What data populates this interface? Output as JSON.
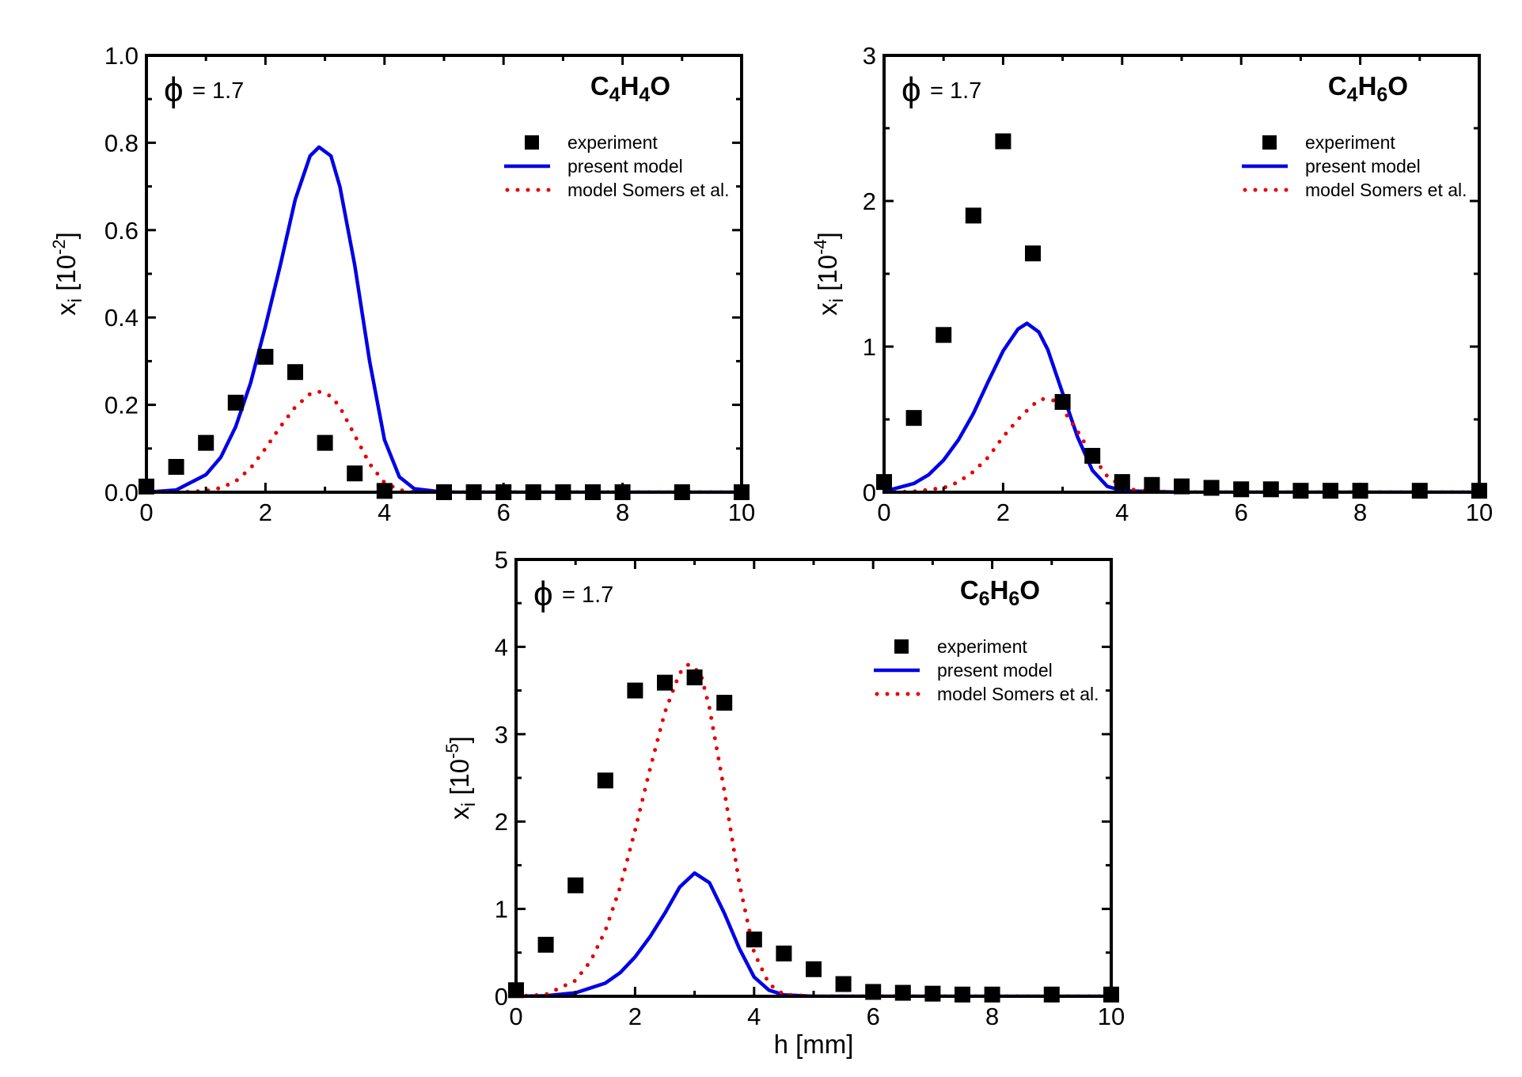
{
  "legend": {
    "experiment": "experiment",
    "present": "present model",
    "somers": "model Somers et al."
  },
  "colors": {
    "experiment": "#000000",
    "present": "#0000e6",
    "somers": "#e60000",
    "axes": "#000000"
  },
  "chart_data": [
    {
      "type": "scatter",
      "panel": "top-left",
      "annotation_phi": "ϕ",
      "annotation_value": "= 1.7",
      "species": "C4H4O",
      "xlabel": "",
      "ylabel": "xi [10-2]",
      "xlim": [
        0,
        10
      ],
      "ylim": [
        0,
        1.0
      ],
      "xticks": [
        0,
        2,
        4,
        6,
        8,
        10
      ],
      "xtick_labels": [
        "0",
        "2",
        "4",
        "6",
        "8",
        "10"
      ],
      "yticks": [
        0,
        0.2,
        0.4,
        0.6,
        0.8,
        1.0
      ],
      "ytick_labels": [
        "0.0",
        "0.2",
        "0.4",
        "0.6",
        "0.8",
        "1.0"
      ],
      "legend_position": "top-right",
      "series": [
        {
          "name": "experiment",
          "style": "squares",
          "x": [
            0,
            0.5,
            1,
            1.5,
            2,
            2.5,
            3,
            3.5,
            4,
            5,
            5.5,
            6,
            6.5,
            7,
            7.5,
            8,
            9,
            10
          ],
          "y": [
            0.013,
            0.058,
            0.113,
            0.205,
            0.31,
            0.275,
            0.113,
            0.043,
            0.003,
            0,
            0,
            0,
            0,
            0,
            0,
            0,
            0,
            0
          ]
        },
        {
          "name": "present model",
          "style": "solid-line",
          "x": [
            0,
            0.5,
            1,
            1.25,
            1.5,
            1.75,
            2,
            2.25,
            2.5,
            2.75,
            2.9,
            3.1,
            3.25,
            3.5,
            3.75,
            4,
            4.25,
            4.5,
            5,
            6,
            8,
            10
          ],
          "y": [
            0,
            0.005,
            0.04,
            0.08,
            0.15,
            0.25,
            0.38,
            0.52,
            0.67,
            0.77,
            0.79,
            0.77,
            0.7,
            0.52,
            0.3,
            0.12,
            0.035,
            0.008,
            0,
            0,
            0,
            0
          ]
        },
        {
          "name": "model Somers et al.",
          "style": "dotted-line",
          "x": [
            0,
            0.5,
            1,
            1.25,
            1.5,
            1.75,
            2,
            2.25,
            2.5,
            2.75,
            2.9,
            3.1,
            3.25,
            3.5,
            3.75,
            4,
            4.25,
            4.5,
            5,
            6,
            8,
            10
          ],
          "y": [
            0,
            0,
            0.003,
            0.01,
            0.025,
            0.055,
            0.1,
            0.15,
            0.195,
            0.225,
            0.23,
            0.22,
            0.195,
            0.13,
            0.065,
            0.022,
            0.005,
            0,
            0,
            0,
            0,
            0
          ]
        }
      ]
    },
    {
      "type": "scatter",
      "panel": "top-right",
      "annotation_phi": "ϕ",
      "annotation_value": "= 1.7",
      "species": "C4H6O",
      "xlabel": "",
      "ylabel": "xi [10-4]",
      "xlim": [
        0,
        10
      ],
      "ylim": [
        0,
        3
      ],
      "xticks": [
        0,
        2,
        4,
        6,
        8,
        10
      ],
      "xtick_labels": [
        "0",
        "2",
        "4",
        "6",
        "8",
        "10"
      ],
      "yticks": [
        0,
        1,
        2,
        3
      ],
      "ytick_labels": [
        "0",
        "1",
        "2",
        "3"
      ],
      "legend_position": "top-right",
      "series": [
        {
          "name": "experiment",
          "style": "squares",
          "x": [
            0,
            0.5,
            1,
            1.5,
            2,
            2.5,
            3,
            3.5,
            4,
            4.5,
            5,
            5.5,
            6,
            6.5,
            7,
            7.5,
            8,
            9,
            10
          ],
          "y": [
            0.07,
            0.51,
            1.08,
            1.9,
            2.41,
            1.64,
            0.62,
            0.25,
            0.07,
            0.05,
            0.04,
            0.03,
            0.02,
            0.02,
            0.01,
            0.01,
            0.01,
            0.01,
            0.01
          ]
        },
        {
          "name": "present model",
          "style": "solid-line",
          "x": [
            0,
            0.5,
            0.75,
            1,
            1.25,
            1.5,
            1.75,
            2,
            2.25,
            2.4,
            2.6,
            2.75,
            3,
            3.25,
            3.5,
            3.75,
            4,
            5,
            6,
            8,
            10
          ],
          "y": [
            0.005,
            0.06,
            0.12,
            0.22,
            0.36,
            0.54,
            0.76,
            0.97,
            1.12,
            1.16,
            1.1,
            0.98,
            0.68,
            0.38,
            0.15,
            0.04,
            0.01,
            0,
            0,
            0,
            0
          ]
        },
        {
          "name": "model Somers et al.",
          "style": "dotted-line",
          "x": [
            0,
            0.5,
            1,
            1.25,
            1.5,
            1.75,
            2,
            2.25,
            2.5,
            2.65,
            2.85,
            3,
            3.25,
            3.5,
            3.75,
            4,
            4.25,
            5,
            6,
            8,
            10
          ],
          "y": [
            0,
            0.005,
            0.03,
            0.07,
            0.14,
            0.24,
            0.38,
            0.5,
            0.6,
            0.64,
            0.63,
            0.57,
            0.42,
            0.25,
            0.11,
            0.04,
            0.01,
            0,
            0,
            0,
            0
          ]
        }
      ]
    },
    {
      "type": "scatter",
      "panel": "bottom-center",
      "annotation_phi": "ϕ",
      "annotation_value": "= 1.7",
      "species": "C6H6O",
      "xlabel": "h [mm]",
      "ylabel": "xi [10-5]",
      "xlim": [
        0,
        10
      ],
      "ylim": [
        0,
        5
      ],
      "xticks": [
        0,
        2,
        4,
        6,
        8,
        10
      ],
      "xtick_labels": [
        "0",
        "2",
        "4",
        "6",
        "8",
        "10"
      ],
      "yticks": [
        0,
        1,
        2,
        3,
        4,
        5
      ],
      "ytick_labels": [
        "0",
        "1",
        "2",
        "3",
        "4",
        "5"
      ],
      "legend_position": "top-right",
      "series": [
        {
          "name": "experiment",
          "style": "squares",
          "x": [
            0,
            0.5,
            1,
            1.5,
            2,
            2.5,
            3,
            3.5,
            4,
            4.5,
            5,
            5.5,
            6,
            6.5,
            7,
            7.5,
            8,
            9,
            10
          ],
          "y": [
            0.07,
            0.59,
            1.27,
            2.47,
            3.5,
            3.59,
            3.65,
            3.36,
            0.65,
            0.49,
            0.31,
            0.14,
            0.05,
            0.04,
            0.03,
            0.02,
            0.02,
            0.02,
            0.02
          ]
        },
        {
          "name": "present model",
          "style": "solid-line",
          "x": [
            0,
            0.5,
            1,
            1.5,
            1.75,
            2,
            2.25,
            2.5,
            2.75,
            3,
            3.25,
            3.5,
            3.75,
            4,
            4.25,
            4.5,
            5,
            6,
            8,
            10
          ],
          "y": [
            0,
            0.005,
            0.04,
            0.15,
            0.27,
            0.45,
            0.68,
            0.95,
            1.25,
            1.41,
            1.3,
            0.95,
            0.55,
            0.22,
            0.07,
            0.015,
            0,
            0,
            0,
            0
          ]
        },
        {
          "name": "model Somers et al.",
          "style": "dotted-line",
          "x": [
            0,
            0.5,
            1,
            1.25,
            1.5,
            1.75,
            2,
            2.25,
            2.5,
            2.75,
            2.9,
            3.1,
            3.25,
            3.5,
            3.75,
            4,
            4.25,
            4.5,
            5,
            6,
            8,
            10
          ],
          "y": [
            0,
            0.02,
            0.18,
            0.4,
            0.75,
            1.25,
            1.9,
            2.6,
            3.25,
            3.7,
            3.8,
            3.7,
            3.3,
            2.35,
            1.3,
            0.5,
            0.14,
            0.02,
            0,
            0,
            0,
            0
          ]
        }
      ]
    }
  ]
}
